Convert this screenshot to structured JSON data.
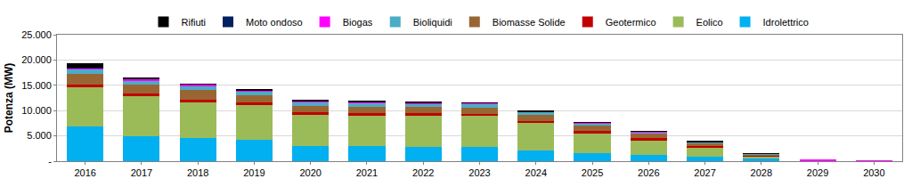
{
  "chart_data": {
    "type": "bar",
    "stacked": true,
    "y_label": "Potenza (MW)",
    "categories": [
      "2016",
      "2017",
      "2018",
      "2019",
      "2020",
      "2021",
      "2022",
      "2023",
      "2024",
      "2025",
      "2026",
      "2027",
      "2028",
      "2029",
      "2030"
    ],
    "series": [
      {
        "name": "Idrolettrico",
        "color": "#00b0f0",
        "values": [
          6800,
          5000,
          4500,
          4200,
          3000,
          3000,
          2900,
          2900,
          2200,
          1600,
          1300,
          900,
          500,
          0,
          0
        ]
      },
      {
        "name": "Eolico",
        "color": "#9bbb59",
        "values": [
          7800,
          7800,
          7100,
          6900,
          6200,
          6000,
          6100,
          6000,
          5300,
          4000,
          2900,
          1800,
          500,
          0,
          0
        ]
      },
      {
        "name": "Geotermico",
        "color": "#c00000",
        "values": [
          600,
          500,
          500,
          500,
          500,
          500,
          500,
          500,
          400,
          300,
          300,
          250,
          100,
          0,
          0
        ]
      },
      {
        "name": "Biomasse Solide",
        "color": "#996633",
        "values": [
          2000,
          1800,
          1900,
          1400,
          1200,
          1200,
          1200,
          1200,
          1200,
          1200,
          1000,
          600,
          300,
          0,
          0
        ]
      },
      {
        "name": "Bioliquidi",
        "color": "#4bacc6",
        "values": [
          1000,
          900,
          900,
          800,
          800,
          800,
          700,
          700,
          600,
          400,
          300,
          250,
          50,
          0,
          0
        ]
      },
      {
        "name": "Biogas",
        "color": "#ff00ff",
        "values": [
          200,
          200,
          300,
          150,
          150,
          150,
          150,
          150,
          100,
          100,
          50,
          50,
          30,
          250,
          150
        ]
      },
      {
        "name": "Moto ondoso",
        "color": "#002060",
        "values": [
          100,
          50,
          0,
          0,
          50,
          50,
          50,
          50,
          0,
          0,
          0,
          0,
          0,
          0,
          0
        ]
      },
      {
        "name": "Rifiuti",
        "color": "#000000",
        "values": [
          900,
          300,
          100,
          150,
          100,
          100,
          100,
          100,
          100,
          100,
          50,
          50,
          20,
          0,
          0
        ]
      }
    ],
    "ylim": [
      0,
      25000
    ],
    "yticks": [
      {
        "value": 0,
        "label": "-"
      },
      {
        "value": 5000,
        "label": "5.000"
      },
      {
        "value": 10000,
        "label": "10.000"
      },
      {
        "value": 15000,
        "label": "15.000"
      },
      {
        "value": 20000,
        "label": "20.000"
      },
      {
        "value": 25000,
        "label": "25.000"
      }
    ],
    "grid": true,
    "legend": "top"
  }
}
